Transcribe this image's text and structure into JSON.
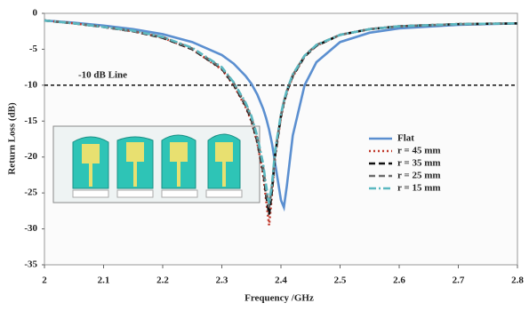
{
  "chart_data": {
    "type": "line",
    "x_label": "Frequency /GHz",
    "y_label": "Return Loss (dB)",
    "annotation": {
      "text": "-10 dB Line",
      "value": -10
    },
    "xlim": [
      2.0,
      2.8
    ],
    "xticks": [
      2,
      2.1,
      2.2,
      2.3,
      2.4,
      2.5,
      2.6,
      2.7,
      2.8
    ],
    "ylim": [
      -35,
      0
    ],
    "yticks": [
      0,
      -5,
      -10,
      -15,
      -20,
      -25,
      -30,
      -35
    ],
    "legend": "center right",
    "x": [
      2.0,
      2.05,
      2.1,
      2.15,
      2.2,
      2.25,
      2.3,
      2.32,
      2.34,
      2.35,
      2.36,
      2.37,
      2.375,
      2.38,
      2.385,
      2.39,
      2.4,
      2.405,
      2.41,
      2.42,
      2.44,
      2.46,
      2.5,
      2.55,
      2.6,
      2.7,
      2.8
    ],
    "series": [
      {
        "name": "Flat",
        "color": "#5b8fd0",
        "style": "solid",
        "values": [
          -1,
          -1.3,
          -1.7,
          -2.2,
          -2.9,
          -4,
          -5.8,
          -7,
          -8.7,
          -9.8,
          -11.3,
          -13.3,
          -14.6,
          -16.2,
          -18.2,
          -20.8,
          -26,
          -27,
          -24,
          -17,
          -10,
          -6.8,
          -4,
          -2.7,
          -2.1,
          -1.6,
          -1.4
        ]
      },
      {
        "name": "r = 45 mm",
        "color": "#c0392b",
        "style": "dotted",
        "values": [
          -1,
          -1.4,
          -1.9,
          -2.5,
          -3.4,
          -5,
          -7.8,
          -10,
          -13,
          -15,
          -18,
          -22.5,
          -26,
          -29.5,
          -25,
          -20,
          -14.5,
          -12.5,
          -11,
          -8.8,
          -6,
          -4.5,
          -3,
          -2.2,
          -1.8,
          -1.5,
          -1.4
        ]
      },
      {
        "name": "r = 35 mm",
        "color": "#111111",
        "style": "dashed",
        "values": [
          -1,
          -1.4,
          -1.9,
          -2.5,
          -3.4,
          -5,
          -7.7,
          -9.9,
          -12.8,
          -14.8,
          -17.8,
          -22,
          -25.3,
          -28,
          -24.5,
          -19.8,
          -14.3,
          -12.4,
          -10.9,
          -8.7,
          -6,
          -4.5,
          -3,
          -2.2,
          -1.8,
          -1.5,
          -1.4
        ]
      },
      {
        "name": "r = 25 mm",
        "color": "#6b6b6b",
        "style": "dashed",
        "values": [
          -1,
          -1.4,
          -1.9,
          -2.5,
          -3.3,
          -4.9,
          -7.6,
          -9.7,
          -12.6,
          -14.5,
          -17.4,
          -21.5,
          -24.6,
          -27,
          -24,
          -19.5,
          -14.2,
          -12.3,
          -10.8,
          -8.6,
          -5.9,
          -4.4,
          -3,
          -2.2,
          -1.8,
          -1.5,
          -1.4
        ]
      },
      {
        "name": "r = 15 mm",
        "color": "#5bb8c0",
        "style": "dashdot",
        "values": [
          -1,
          -1.4,
          -1.9,
          -2.4,
          -3.3,
          -4.8,
          -7.5,
          -9.6,
          -12.4,
          -14.3,
          -17.1,
          -21,
          -24,
          -26.5,
          -23.6,
          -19.2,
          -14,
          -12.2,
          -10.7,
          -8.5,
          -5.9,
          -4.4,
          -3,
          -2.2,
          -1.8,
          -1.5,
          -1.4
        ]
      }
    ]
  }
}
